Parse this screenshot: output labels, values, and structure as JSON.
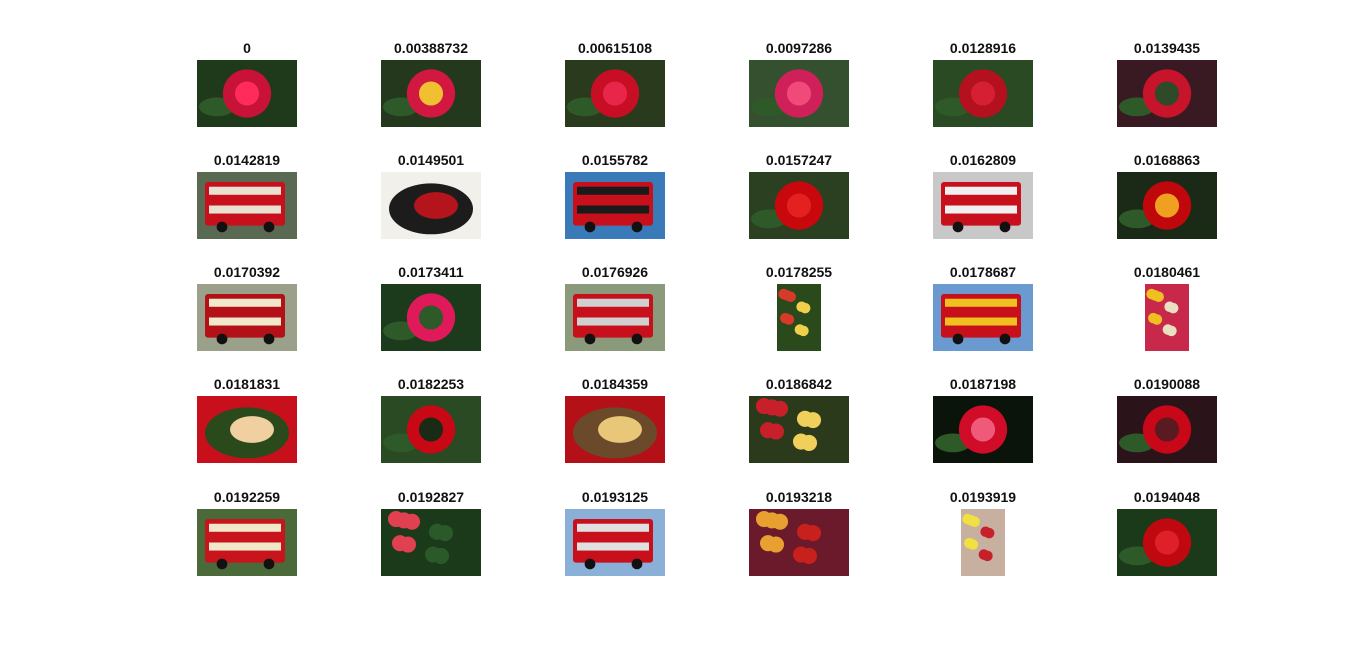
{
  "results": [
    {
      "score": "0",
      "subject": "red-rose-photo",
      "orientation": "landscape",
      "colors": [
        "#1f3a1a",
        "#c81237",
        "#ff2b5a"
      ]
    },
    {
      "score": "0.00388732",
      "subject": "red-rose-photo",
      "orientation": "landscape",
      "colors": [
        "#23381c",
        "#d21840",
        "#f0c030"
      ]
    },
    {
      "score": "0.00615108",
      "subject": "red-rose-photo",
      "orientation": "landscape",
      "colors": [
        "#2a3a1c",
        "#c80e24",
        "#e8264a"
      ]
    },
    {
      "score": "0.0097286",
      "subject": "red-rose-photo",
      "orientation": "landscape",
      "colors": [
        "#35502e",
        "#d0205a",
        "#f04a7a"
      ]
    },
    {
      "score": "0.0128916",
      "subject": "red-rose-photo",
      "orientation": "landscape",
      "colors": [
        "#2a4a24",
        "#b4101e",
        "#d42032"
      ]
    },
    {
      "score": "0.0139435",
      "subject": "red-rose-photo",
      "orientation": "landscape",
      "colors": [
        "#3a1a22",
        "#c8142a",
        "#2e4a28"
      ]
    },
    {
      "score": "0.0142819",
      "subject": "red-double-decker-bus-photo",
      "orientation": "landscape",
      "colors": [
        "#5a6a52",
        "#c8101c",
        "#e8e0d0"
      ]
    },
    {
      "score": "0.0149501",
      "subject": "food-plate-photo",
      "orientation": "landscape",
      "colors": [
        "#f2f0ea",
        "#b4141c",
        "#1c1c1c"
      ]
    },
    {
      "score": "0.0155782",
      "subject": "red-double-decker-bus-photo",
      "orientation": "landscape",
      "colors": [
        "#3a7ab8",
        "#c8101c",
        "#1a1a1a"
      ]
    },
    {
      "score": "0.0157247",
      "subject": "red-rose-photo",
      "orientation": "landscape",
      "colors": [
        "#2a4020",
        "#c8080c",
        "#e42020"
      ]
    },
    {
      "score": "0.0162809",
      "subject": "red-double-decker-bus-photo",
      "orientation": "landscape",
      "colors": [
        "#c8c8c8",
        "#c8101c",
        "#f0f0f0"
      ]
    },
    {
      "score": "0.0168863",
      "subject": "red-rose-photo",
      "orientation": "landscape",
      "colors": [
        "#1a2a16",
        "#c0080c",
        "#f0a020"
      ]
    },
    {
      "score": "0.0170392",
      "subject": "red-double-decker-bus-photo",
      "orientation": "landscape",
      "colors": [
        "#9aa08a",
        "#b41018",
        "#f0e8c8"
      ]
    },
    {
      "score": "0.0173411",
      "subject": "red-rose-photo",
      "orientation": "landscape",
      "colors": [
        "#1c3a1c",
        "#e01a5a",
        "#2e5a2a"
      ]
    },
    {
      "score": "0.0176926",
      "subject": "red-double-decker-bus-photo",
      "orientation": "landscape",
      "colors": [
        "#8a9a7a",
        "#c8101c",
        "#d0d0d0"
      ]
    },
    {
      "score": "0.0178255",
      "subject": "flower-bouquet-photo",
      "orientation": "portrait",
      "colors": [
        "#2a4a1c",
        "#d83a2a",
        "#f0d04a"
      ]
    },
    {
      "score": "0.0178687",
      "subject": "red-double-decker-bus-photo",
      "orientation": "landscape",
      "colors": [
        "#6a9ad0",
        "#c8101c",
        "#f0c020"
      ]
    },
    {
      "score": "0.0180461",
      "subject": "food-dish-photo",
      "orientation": "portrait",
      "colors": [
        "#c8284a",
        "#f0c020",
        "#e8e0c0"
      ]
    },
    {
      "score": "0.0181831",
      "subject": "food-plate-photo",
      "orientation": "landscape",
      "colors": [
        "#c8101c",
        "#f0d0a0",
        "#2a4a1c"
      ]
    },
    {
      "score": "0.0182253",
      "subject": "red-rose-photo",
      "orientation": "landscape",
      "colors": [
        "#2a4a24",
        "#c80814",
        "#1a2a14"
      ]
    },
    {
      "score": "0.0184359",
      "subject": "food-plate-photo",
      "orientation": "landscape",
      "colors": [
        "#b41018",
        "#e8c878",
        "#6a4a2a"
      ]
    },
    {
      "score": "0.0186842",
      "subject": "fruit-arrangement-photo",
      "orientation": "landscape",
      "colors": [
        "#2a3a1a",
        "#c8202a",
        "#f0d05a"
      ]
    },
    {
      "score": "0.0187198",
      "subject": "red-rose-photo",
      "orientation": "landscape",
      "colors": [
        "#0a140a",
        "#d00c28",
        "#f05a7a"
      ]
    },
    {
      "score": "0.0190088",
      "subject": "red-rose-photo",
      "orientation": "landscape",
      "colors": [
        "#2a141a",
        "#c80818",
        "#5a1a22"
      ]
    },
    {
      "score": "0.0192259",
      "subject": "vintage-bus-photo",
      "orientation": "landscape",
      "colors": [
        "#4a6a3a",
        "#c8141c",
        "#f0e8c8"
      ]
    },
    {
      "score": "0.0192827",
      "subject": "red-flowers-garden-photo",
      "orientation": "landscape",
      "colors": [
        "#1a3a1a",
        "#e04050",
        "#2a5a2a"
      ]
    },
    {
      "score": "0.0193125",
      "subject": "red-double-decker-bus-photo",
      "orientation": "landscape",
      "colors": [
        "#8ab0d8",
        "#c8101c",
        "#e0e0e0"
      ]
    },
    {
      "score": "0.0193218",
      "subject": "food-platter-photo",
      "orientation": "landscape",
      "colors": [
        "#6a1a2a",
        "#e8a030",
        "#c8201c"
      ]
    },
    {
      "score": "0.0193919",
      "subject": "food-arrangement-photo",
      "orientation": "portrait",
      "colors": [
        "#c8b0a0",
        "#f0e040",
        "#c8202a"
      ]
    },
    {
      "score": "0.0194048",
      "subject": "red-rose-photo",
      "orientation": "landscape",
      "colors": [
        "#1a3a1a",
        "#c00810",
        "#e02028"
      ]
    }
  ]
}
